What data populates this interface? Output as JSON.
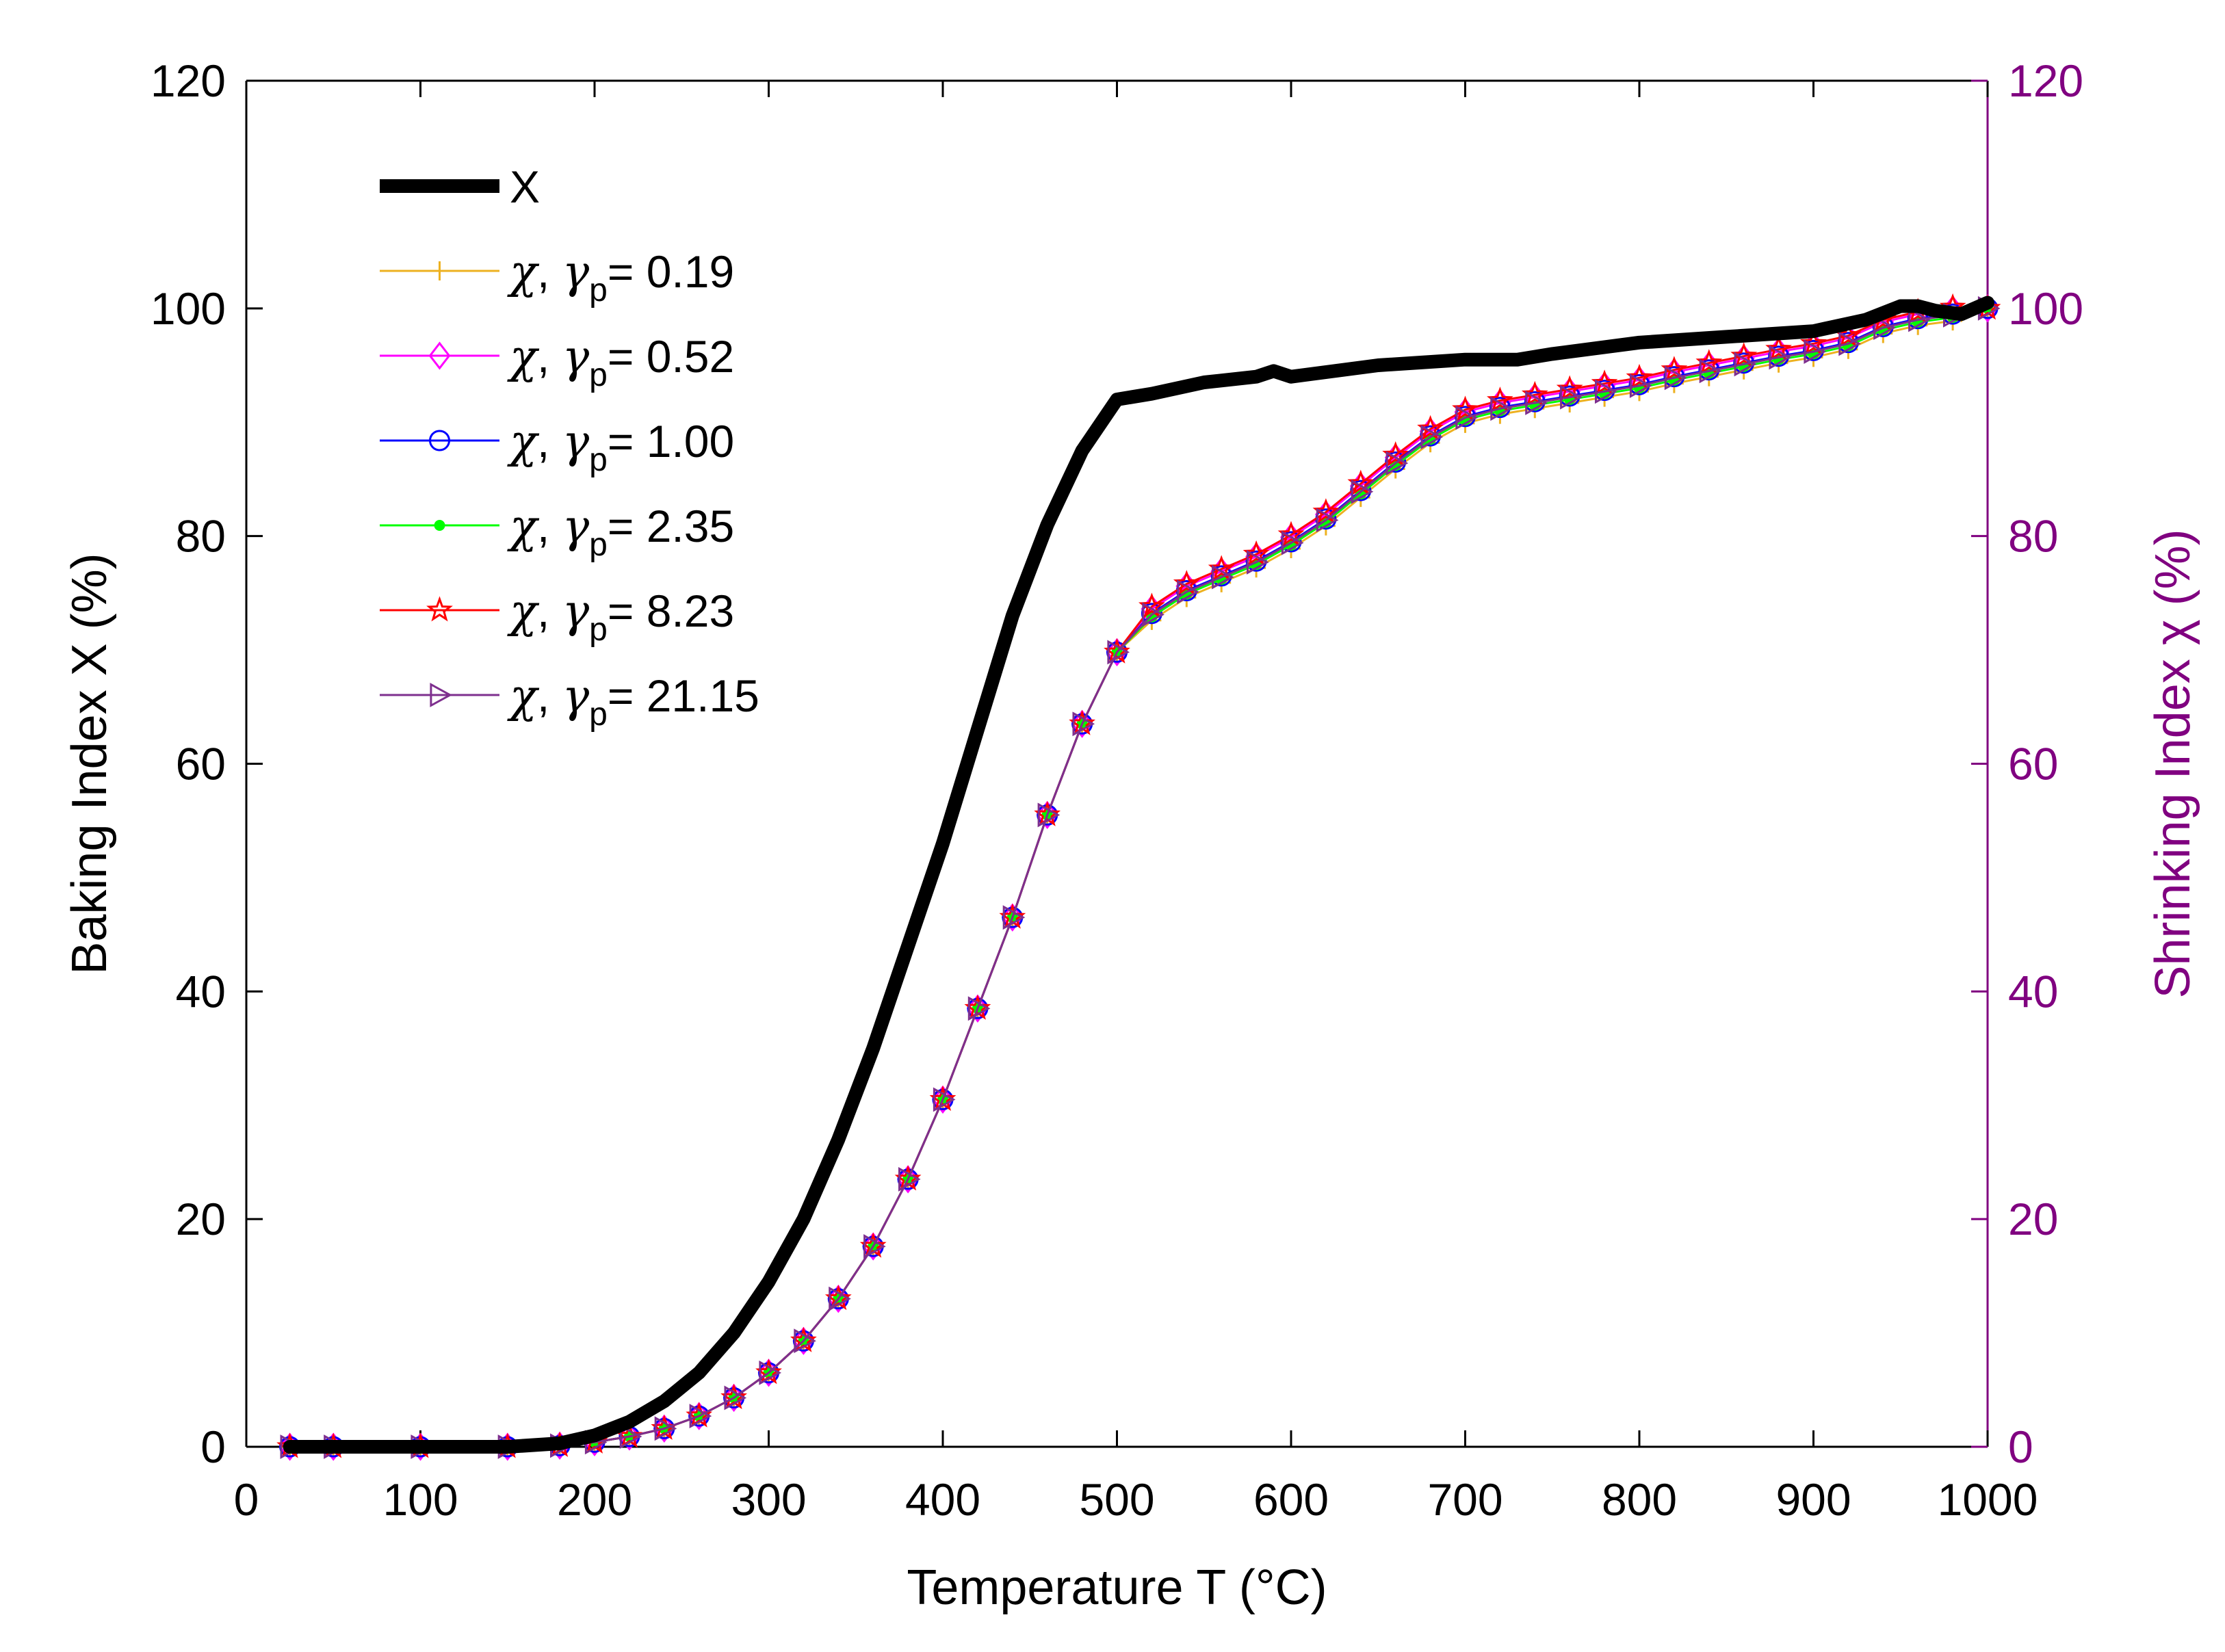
{
  "chart_data": {
    "type": "line",
    "xlabel": "Temperature T (°C)",
    "ylabel_left": "Baking Index X (%)",
    "ylabel_right": "Shrinking Index χ (%)",
    "xlim": [
      0,
      1000
    ],
    "ylim_left": [
      0,
      120
    ],
    "ylim_right": [
      0,
      120
    ],
    "x_ticks": [
      0,
      100,
      200,
      300,
      400,
      500,
      600,
      700,
      800,
      900,
      1000
    ],
    "y_ticks": [
      0,
      20,
      40,
      60,
      80,
      100,
      120
    ],
    "grid": false,
    "legend_position": "top-left",
    "colors": {
      "axis_left": "#000000",
      "axis_right": "#800080"
    },
    "legend": [
      {
        "symbol": "X",
        "gamma": "",
        "color": "#000000",
        "marker": "none",
        "thick": true
      },
      {
        "symbol": "χ",
        "gamma": "0.19",
        "color": "#EDB120",
        "marker": "plus"
      },
      {
        "symbol": "χ",
        "gamma": "0.52",
        "color": "#FF00FF",
        "marker": "diamond"
      },
      {
        "symbol": "χ",
        "gamma": "1.00",
        "color": "#0000FF",
        "marker": "circle"
      },
      {
        "symbol": "χ",
        "gamma": "2.35",
        "color": "#00FF00",
        "marker": "dot"
      },
      {
        "symbol": "χ",
        "gamma": "8.23",
        "color": "#FF0000",
        "marker": "star"
      },
      {
        "symbol": "χ",
        "gamma": "21.15",
        "color": "#7E2F8E",
        "marker": "triangle-right"
      }
    ],
    "series_X": {
      "name": "X",
      "x": [
        25,
        50,
        100,
        150,
        180,
        200,
        220,
        240,
        260,
        280,
        300,
        320,
        340,
        360,
        380,
        400,
        420,
        440,
        460,
        480,
        500,
        520,
        550,
        580,
        590,
        600,
        650,
        700,
        710,
        730,
        750,
        800,
        850,
        900,
        930,
        950,
        960,
        970,
        985,
        1000
      ],
      "y": [
        0,
        0,
        0,
        0,
        0.3,
        1,
        2.2,
        4,
        6.5,
        10,
        14.5,
        20,
        27,
        35,
        44,
        53,
        63,
        73,
        81,
        87.5,
        92,
        92.5,
        93.5,
        94,
        94.5,
        94,
        95,
        95.5,
        95.5,
        95.5,
        96,
        97,
        97.5,
        98,
        99,
        100.2,
        100.2,
        99.8,
        99.5,
        100.5
      ]
    },
    "series_chi": {
      "x": [
        25,
        50,
        100,
        150,
        180,
        200,
        220,
        240,
        260,
        280,
        300,
        320,
        340,
        360,
        380,
        400,
        420,
        440,
        460,
        480,
        500,
        520,
        540,
        560,
        580,
        600,
        620,
        640,
        660,
        680,
        700,
        720,
        740,
        760,
        780,
        800,
        820,
        840,
        860,
        880,
        900,
        920,
        940,
        960,
        980,
        1000
      ],
      "y": [
        0,
        0,
        0,
        0,
        0.1,
        0.4,
        0.9,
        1.6,
        2.7,
        4.3,
        6.5,
        9.3,
        13,
        17.6,
        23.5,
        30.5,
        38.5,
        46.5,
        55.5,
        63.5,
        69.8,
        73.2,
        75.2,
        76.5,
        77.8,
        79.5,
        81.5,
        84,
        86.5,
        88.8,
        90.5,
        91.3,
        91.8,
        92.3,
        92.8,
        93.3,
        94,
        94.6,
        95.2,
        95.8,
        96.3,
        97,
        98.4,
        99.1,
        99.5,
        100
      ]
    },
    "gamma_p": [
      0.19,
      0.52,
      1.0,
      2.35,
      8.23,
      21.15
    ]
  }
}
